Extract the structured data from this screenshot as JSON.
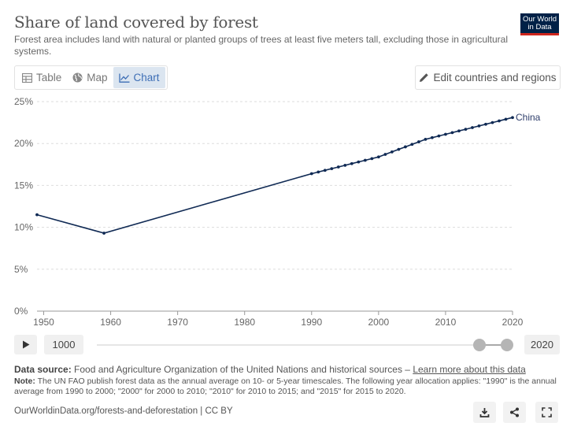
{
  "header": {
    "title": "Share of land covered by forest",
    "subtitle": "Forest area includes land with natural or planted groups of trees at least five meters tall, excluding those in agricultural systems.",
    "logo_line1": "Our World",
    "logo_line2": "in Data"
  },
  "tabs": [
    {
      "label": "Table",
      "icon": "table-icon",
      "active": false
    },
    {
      "label": "Map",
      "icon": "globe-icon",
      "active": false
    },
    {
      "label": "Chart",
      "icon": "line-chart-icon",
      "active": true
    }
  ],
  "edit_button": {
    "label": "Edit countries and regions",
    "icon": "pencil-icon"
  },
  "timeline": {
    "start": "1000",
    "end": "2020"
  },
  "footer": {
    "source_label": "Data source:",
    "source_text": "Food and Agriculture Organization of the United Nations and historical sources –",
    "source_link": "Learn more about this data",
    "note_label": "Note:",
    "note_text": "The UN FAO publish forest data as the annual average on 10- or 5-year timescales. The following year allocation applies: \"1990\" is the annual average from 1990 to 2000; \"2000\" for 2000 to 2010; \"2010\" for 2010 to 2015; and \"2015\" for 2015 to 2020.",
    "url": "OurWorldinData.org/forests-and-deforestation | CC BY"
  },
  "colors": {
    "series": "#102a54",
    "accent": "#3d6eb5",
    "logo_bg": "#002147",
    "logo_bar": "#ce261e"
  },
  "chart_data": {
    "type": "line",
    "title": "Share of land covered by forest",
    "xlabel": "",
    "ylabel": "",
    "xlim": [
      1949,
      2020
    ],
    "ylim": [
      0,
      25
    ],
    "x_ticks": [
      1950,
      1960,
      1970,
      1980,
      1990,
      2000,
      2010,
      2020
    ],
    "y_ticks": [
      0,
      5,
      10,
      15,
      20,
      25
    ],
    "y_tick_labels": [
      "0%",
      "5%",
      "10%",
      "15%",
      "20%",
      "25%"
    ],
    "grid": "horizontal-dashed",
    "series": [
      {
        "name": "China",
        "x": [
          1949,
          1959,
          1990,
          1991,
          1992,
          1993,
          1994,
          1995,
          1996,
          1997,
          1998,
          1999,
          2000,
          2001,
          2002,
          2003,
          2004,
          2005,
          2006,
          2007,
          2008,
          2009,
          2010,
          2011,
          2012,
          2013,
          2014,
          2015,
          2016,
          2017,
          2018,
          2019,
          2020
        ],
        "y": [
          11.5,
          9.3,
          16.4,
          16.6,
          16.8,
          17.0,
          17.2,
          17.4,
          17.6,
          17.8,
          18.0,
          18.2,
          18.4,
          18.7,
          19.0,
          19.3,
          19.6,
          19.9,
          20.2,
          20.5,
          20.7,
          20.9,
          21.1,
          21.3,
          21.5,
          21.7,
          21.9,
          22.1,
          22.3,
          22.5,
          22.7,
          22.9,
          23.1
        ]
      }
    ]
  }
}
